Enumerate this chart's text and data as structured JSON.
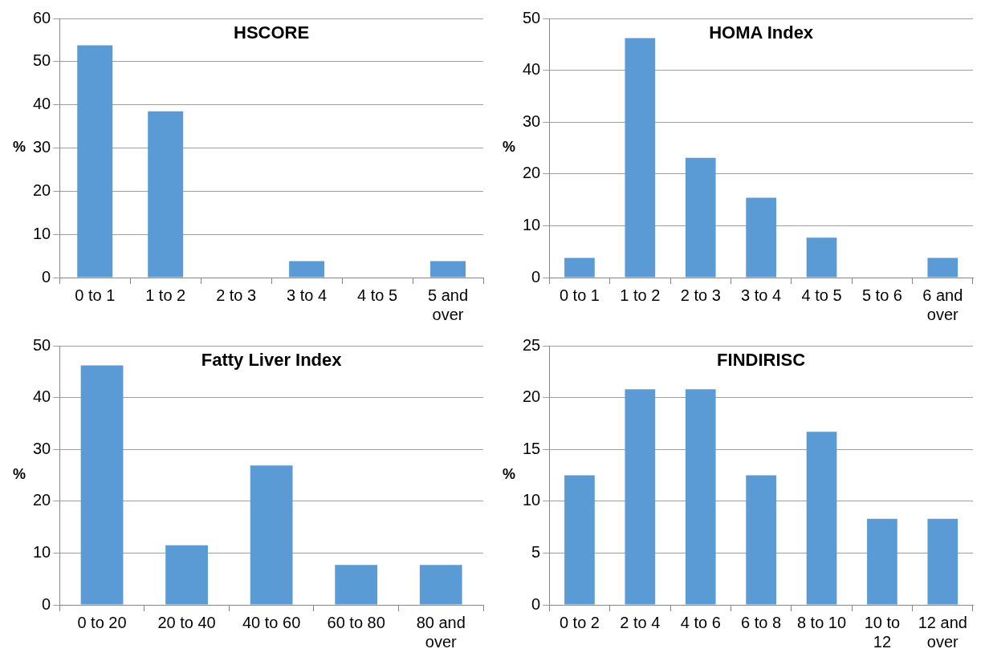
{
  "chart_data": [
    {
      "type": "bar",
      "title": "HSCORE",
      "ylabel": "%",
      "categories": [
        "0 to 1",
        "1 to 2",
        "2 to 3",
        "3 to 4",
        "4 to 5",
        "5 and over"
      ],
      "values": [
        53.8,
        38.5,
        0,
        3.8,
        0,
        3.8
      ],
      "color": "#5b9bd5",
      "ylim": [
        0,
        60
      ],
      "yticks": [
        0,
        10,
        20,
        30,
        40,
        50,
        60
      ],
      "grid": "y",
      "legend": false
    },
    {
      "type": "bar",
      "title": "HOMA Index",
      "ylabel": "%",
      "categories": [
        "0 to 1",
        "1 to 2",
        "2 to 3",
        "3 to 4",
        "4 to 5",
        "5 to 6",
        "6 and over"
      ],
      "values": [
        3.8,
        46.2,
        23.1,
        15.4,
        7.7,
        0,
        3.8
      ],
      "color": "#5b9bd5",
      "ylim": [
        0,
        50
      ],
      "yticks": [
        0,
        10,
        20,
        30,
        40,
        50
      ],
      "grid": "y",
      "legend": false
    },
    {
      "type": "bar",
      "title": "Fatty Liver Index",
      "ylabel": "%",
      "categories": [
        "0 to 20",
        "20 to 40",
        "40 to 60",
        "60 to 80",
        "80 and over"
      ],
      "values": [
        46.2,
        11.5,
        26.9,
        7.7,
        7.7
      ],
      "color": "#5b9bd5",
      "ylim": [
        0,
        50
      ],
      "yticks": [
        0,
        10,
        20,
        30,
        40,
        50
      ],
      "grid": "y",
      "legend": false
    },
    {
      "type": "bar",
      "title": "FINDIRISC",
      "ylabel": "%",
      "categories": [
        "0 to 2",
        "2 to 4",
        "4 to 6",
        "6 to 8",
        "8 to 10",
        "10 to 12",
        "12 and over"
      ],
      "values": [
        12.5,
        20.8,
        20.8,
        12.5,
        16.7,
        8.3,
        8.3
      ],
      "color": "#5b9bd5",
      "ylim": [
        0,
        25
      ],
      "yticks": [
        0,
        5,
        10,
        15,
        20,
        25
      ],
      "grid": "y",
      "legend": false
    }
  ]
}
